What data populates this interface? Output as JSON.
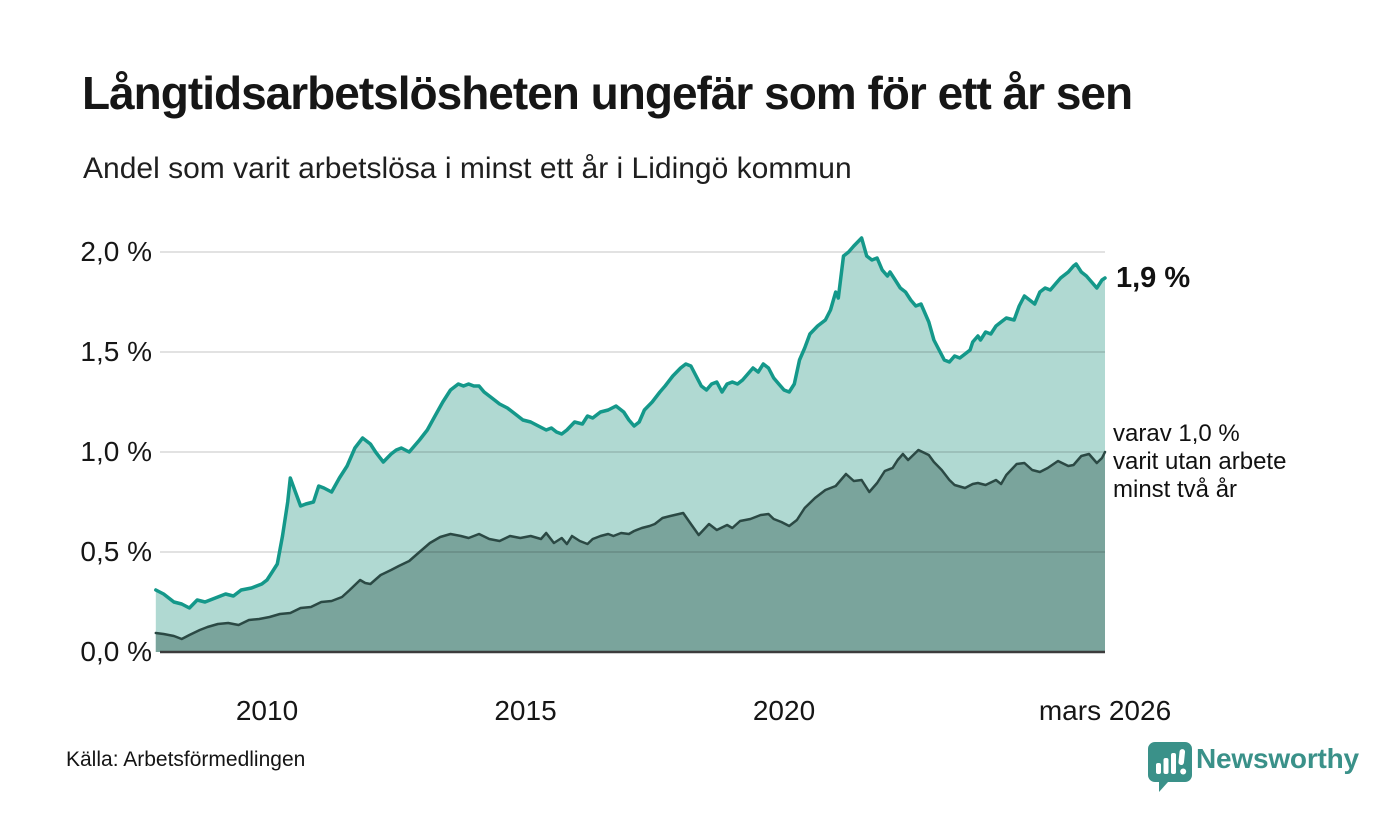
{
  "header": {
    "title": "Långtidsarbetslösheten ungefär som för ett år sen",
    "subtitle": "Andel som varit arbetslösa i minst ett år i Lidingö kommun"
  },
  "annotations": {
    "end_value_total": "1,9 %",
    "end_note_lines": [
      "varav 1,0 %",
      "varit utan arbete",
      "minst två år"
    ]
  },
  "source": "Källa: Arbetsförmedlingen",
  "branding": {
    "name": "Newsworthy",
    "logo_icon": "bar-chart-speech-bubble-icon"
  },
  "colors": {
    "background": "#ffffff",
    "title_text": "#161616",
    "line_total": "#14988a",
    "fill_total": "#b0d9d2",
    "line_two_years": "#2b4944",
    "fill_two_years": "#7aa49c",
    "gridline": "#e1e1e1",
    "axis_line": "#3c3c3c",
    "brand_teal": "#3a9189"
  },
  "chart_data": {
    "type": "area",
    "title": "Långtidsarbetslösheten ungefär som för ett år sen",
    "subtitle": "Andel som varit arbetslösa i minst ett år i Lidingö kommun",
    "xlabel": "",
    "ylabel": "",
    "x_range": [
      2007.85,
      2026.25
    ],
    "ylim": [
      0,
      2.1
    ],
    "grid": true,
    "y_ticks": [
      {
        "label": "0,0 %",
        "value": 0.0
      },
      {
        "label": "0,5 %",
        "value": 0.5
      },
      {
        "label": "1,0 %",
        "value": 1.0
      },
      {
        "label": "1,5 %",
        "value": 1.5
      },
      {
        "label": "2,0 %",
        "value": 2.0
      }
    ],
    "x_ticks": [
      {
        "label": "2010",
        "year": 2010
      },
      {
        "label": "2015",
        "year": 2015
      },
      {
        "label": "2020",
        "year": 2020
      },
      {
        "label": "mars 2026",
        "year": 2026.25
      }
    ],
    "series": [
      {
        "name": "Arbetslösa minst ett år",
        "end_label": "1,9 %",
        "line_color": "#14988a",
        "fill_color": "#b0d9d2",
        "line_width": 3.5,
        "points": [
          [
            2007.85,
            0.31
          ],
          [
            2008.0,
            0.29
          ],
          [
            2008.2,
            0.25
          ],
          [
            2008.35,
            0.24
          ],
          [
            2008.5,
            0.22
          ],
          [
            2008.65,
            0.26
          ],
          [
            2008.8,
            0.25
          ],
          [
            2009.0,
            0.27
          ],
          [
            2009.2,
            0.29
          ],
          [
            2009.35,
            0.28
          ],
          [
            2009.5,
            0.31
          ],
          [
            2009.7,
            0.32
          ],
          [
            2009.9,
            0.34
          ],
          [
            2010.0,
            0.36
          ],
          [
            2010.1,
            0.4
          ],
          [
            2010.2,
            0.44
          ],
          [
            2010.3,
            0.58
          ],
          [
            2010.4,
            0.75
          ],
          [
            2010.45,
            0.87
          ],
          [
            2010.55,
            0.8
          ],
          [
            2010.65,
            0.73
          ],
          [
            2010.75,
            0.74
          ],
          [
            2010.9,
            0.75
          ],
          [
            2011.0,
            0.83
          ],
          [
            2011.1,
            0.82
          ],
          [
            2011.25,
            0.8
          ],
          [
            2011.4,
            0.87
          ],
          [
            2011.55,
            0.93
          ],
          [
            2011.7,
            1.02
          ],
          [
            2011.85,
            1.07
          ],
          [
            2012.0,
            1.04
          ],
          [
            2012.1,
            1.0
          ],
          [
            2012.25,
            0.95
          ],
          [
            2012.4,
            0.99
          ],
          [
            2012.5,
            1.01
          ],
          [
            2012.6,
            1.02
          ],
          [
            2012.75,
            1.0
          ],
          [
            2012.95,
            1.06
          ],
          [
            2013.1,
            1.11
          ],
          [
            2013.25,
            1.18
          ],
          [
            2013.4,
            1.25
          ],
          [
            2013.55,
            1.31
          ],
          [
            2013.7,
            1.34
          ],
          [
            2013.8,
            1.33
          ],
          [
            2013.9,
            1.34
          ],
          [
            2014.0,
            1.33
          ],
          [
            2014.1,
            1.33
          ],
          [
            2014.2,
            1.3
          ],
          [
            2014.35,
            1.27
          ],
          [
            2014.5,
            1.24
          ],
          [
            2014.65,
            1.22
          ],
          [
            2014.8,
            1.19
          ],
          [
            2014.95,
            1.16
          ],
          [
            2015.1,
            1.15
          ],
          [
            2015.25,
            1.13
          ],
          [
            2015.4,
            1.11
          ],
          [
            2015.5,
            1.12
          ],
          [
            2015.6,
            1.1
          ],
          [
            2015.7,
            1.09
          ],
          [
            2015.8,
            1.11
          ],
          [
            2015.95,
            1.15
          ],
          [
            2016.1,
            1.14
          ],
          [
            2016.2,
            1.18
          ],
          [
            2016.3,
            1.17
          ],
          [
            2016.45,
            1.2
          ],
          [
            2016.6,
            1.21
          ],
          [
            2016.75,
            1.23
          ],
          [
            2016.9,
            1.2
          ],
          [
            2017.0,
            1.16
          ],
          [
            2017.1,
            1.13
          ],
          [
            2017.2,
            1.15
          ],
          [
            2017.3,
            1.21
          ],
          [
            2017.45,
            1.25
          ],
          [
            2017.6,
            1.3
          ],
          [
            2017.7,
            1.33
          ],
          [
            2017.85,
            1.38
          ],
          [
            2018.0,
            1.42
          ],
          [
            2018.1,
            1.44
          ],
          [
            2018.2,
            1.43
          ],
          [
            2018.3,
            1.38
          ],
          [
            2018.4,
            1.33
          ],
          [
            2018.5,
            1.31
          ],
          [
            2018.6,
            1.34
          ],
          [
            2018.7,
            1.35
          ],
          [
            2018.8,
            1.3
          ],
          [
            2018.9,
            1.34
          ],
          [
            2019.0,
            1.35
          ],
          [
            2019.1,
            1.34
          ],
          [
            2019.2,
            1.36
          ],
          [
            2019.3,
            1.39
          ],
          [
            2019.4,
            1.42
          ],
          [
            2019.5,
            1.4
          ],
          [
            2019.6,
            1.44
          ],
          [
            2019.7,
            1.42
          ],
          [
            2019.8,
            1.37
          ],
          [
            2019.9,
            1.34
          ],
          [
            2020.0,
            1.31
          ],
          [
            2020.1,
            1.3
          ],
          [
            2020.2,
            1.34
          ],
          [
            2020.3,
            1.46
          ],
          [
            2020.4,
            1.52
          ],
          [
            2020.5,
            1.59
          ],
          [
            2020.65,
            1.63
          ],
          [
            2020.8,
            1.66
          ],
          [
            2020.9,
            1.71
          ],
          [
            2021.0,
            1.8
          ],
          [
            2021.05,
            1.77
          ],
          [
            2021.15,
            1.98
          ],
          [
            2021.25,
            2.0
          ],
          [
            2021.35,
            2.03
          ],
          [
            2021.5,
            2.07
          ],
          [
            2021.6,
            1.98
          ],
          [
            2021.7,
            1.96
          ],
          [
            2021.8,
            1.97
          ],
          [
            2021.9,
            1.91
          ],
          [
            2022.0,
            1.88
          ],
          [
            2022.05,
            1.9
          ],
          [
            2022.15,
            1.86
          ],
          [
            2022.25,
            1.82
          ],
          [
            2022.35,
            1.8
          ],
          [
            2022.45,
            1.76
          ],
          [
            2022.55,
            1.73
          ],
          [
            2022.65,
            1.74
          ],
          [
            2022.7,
            1.71
          ],
          [
            2022.8,
            1.65
          ],
          [
            2022.9,
            1.56
          ],
          [
            2023.0,
            1.51
          ],
          [
            2023.1,
            1.46
          ],
          [
            2023.2,
            1.45
          ],
          [
            2023.3,
            1.48
          ],
          [
            2023.4,
            1.47
          ],
          [
            2023.5,
            1.49
          ],
          [
            2023.6,
            1.51
          ],
          [
            2023.65,
            1.55
          ],
          [
            2023.75,
            1.58
          ],
          [
            2023.8,
            1.56
          ],
          [
            2023.9,
            1.6
          ],
          [
            2024.0,
            1.59
          ],
          [
            2024.1,
            1.63
          ],
          [
            2024.2,
            1.65
          ],
          [
            2024.3,
            1.67
          ],
          [
            2024.45,
            1.66
          ],
          [
            2024.55,
            1.73
          ],
          [
            2024.65,
            1.78
          ],
          [
            2024.75,
            1.76
          ],
          [
            2024.85,
            1.74
          ],
          [
            2024.95,
            1.8
          ],
          [
            2025.05,
            1.82
          ],
          [
            2025.15,
            1.81
          ],
          [
            2025.25,
            1.84
          ],
          [
            2025.35,
            1.87
          ],
          [
            2025.5,
            1.9
          ],
          [
            2025.6,
            1.93
          ],
          [
            2025.65,
            1.94
          ],
          [
            2025.75,
            1.9
          ],
          [
            2025.85,
            1.88
          ],
          [
            2025.95,
            1.85
          ],
          [
            2026.05,
            1.82
          ],
          [
            2026.15,
            1.86
          ],
          [
            2026.25,
            1.87
          ]
        ]
      },
      {
        "name": "varav utan arbete minst två år",
        "end_label": "varav 1,0 % varit utan arbete minst två år",
        "line_color": "#2b4944",
        "fill_color": "#7aa49c",
        "line_width": 2.5,
        "points": [
          [
            2007.85,
            0.095
          ],
          [
            2008.0,
            0.09
          ],
          [
            2008.2,
            0.08
          ],
          [
            2008.35,
            0.065
          ],
          [
            2008.5,
            0.085
          ],
          [
            2008.7,
            0.11
          ],
          [
            2008.85,
            0.125
          ],
          [
            2009.05,
            0.14
          ],
          [
            2009.25,
            0.145
          ],
          [
            2009.45,
            0.135
          ],
          [
            2009.65,
            0.16
          ],
          [
            2009.85,
            0.165
          ],
          [
            2010.05,
            0.175
          ],
          [
            2010.25,
            0.19
          ],
          [
            2010.45,
            0.195
          ],
          [
            2010.65,
            0.22
          ],
          [
            2010.85,
            0.225
          ],
          [
            2011.05,
            0.25
          ],
          [
            2011.25,
            0.255
          ],
          [
            2011.45,
            0.275
          ],
          [
            2011.6,
            0.31
          ],
          [
            2011.8,
            0.36
          ],
          [
            2011.9,
            0.345
          ],
          [
            2012.0,
            0.34
          ],
          [
            2012.2,
            0.385
          ],
          [
            2012.4,
            0.41
          ],
          [
            2012.55,
            0.43
          ],
          [
            2012.75,
            0.455
          ],
          [
            2012.95,
            0.5
          ],
          [
            2013.15,
            0.545
          ],
          [
            2013.35,
            0.575
          ],
          [
            2013.55,
            0.59
          ],
          [
            2013.75,
            0.58
          ],
          [
            2013.9,
            0.57
          ],
          [
            2014.1,
            0.59
          ],
          [
            2014.3,
            0.565
          ],
          [
            2014.5,
            0.555
          ],
          [
            2014.7,
            0.58
          ],
          [
            2014.9,
            0.57
          ],
          [
            2015.1,
            0.58
          ],
          [
            2015.3,
            0.565
          ],
          [
            2015.4,
            0.595
          ],
          [
            2015.55,
            0.545
          ],
          [
            2015.7,
            0.57
          ],
          [
            2015.8,
            0.54
          ],
          [
            2015.9,
            0.58
          ],
          [
            2016.05,
            0.555
          ],
          [
            2016.2,
            0.54
          ],
          [
            2016.3,
            0.565
          ],
          [
            2016.45,
            0.58
          ],
          [
            2016.6,
            0.59
          ],
          [
            2016.7,
            0.58
          ],
          [
            2016.85,
            0.595
          ],
          [
            2017.0,
            0.59
          ],
          [
            2017.1,
            0.605
          ],
          [
            2017.25,
            0.62
          ],
          [
            2017.4,
            0.63
          ],
          [
            2017.5,
            0.64
          ],
          [
            2017.65,
            0.67
          ],
          [
            2017.8,
            0.68
          ],
          [
            2018.05,
            0.695
          ],
          [
            2018.2,
            0.64
          ],
          [
            2018.35,
            0.585
          ],
          [
            2018.55,
            0.64
          ],
          [
            2018.7,
            0.61
          ],
          [
            2018.9,
            0.635
          ],
          [
            2019.0,
            0.62
          ],
          [
            2019.15,
            0.655
          ],
          [
            2019.35,
            0.665
          ],
          [
            2019.55,
            0.685
          ],
          [
            2019.7,
            0.69
          ],
          [
            2019.8,
            0.665
          ],
          [
            2019.95,
            0.65
          ],
          [
            2020.1,
            0.63
          ],
          [
            2020.25,
            0.66
          ],
          [
            2020.4,
            0.72
          ],
          [
            2020.6,
            0.77
          ],
          [
            2020.8,
            0.81
          ],
          [
            2021.0,
            0.83
          ],
          [
            2021.2,
            0.89
          ],
          [
            2021.35,
            0.855
          ],
          [
            2021.5,
            0.86
          ],
          [
            2021.65,
            0.8
          ],
          [
            2021.8,
            0.845
          ],
          [
            2021.95,
            0.905
          ],
          [
            2022.1,
            0.92
          ],
          [
            2022.2,
            0.96
          ],
          [
            2022.3,
            0.99
          ],
          [
            2022.4,
            0.96
          ],
          [
            2022.6,
            1.01
          ],
          [
            2022.8,
            0.985
          ],
          [
            2022.9,
            0.95
          ],
          [
            2023.05,
            0.91
          ],
          [
            2023.2,
            0.86
          ],
          [
            2023.3,
            0.835
          ],
          [
            2023.5,
            0.82
          ],
          [
            2023.65,
            0.84
          ],
          [
            2023.75,
            0.845
          ],
          [
            2023.9,
            0.835
          ],
          [
            2024.1,
            0.86
          ],
          [
            2024.2,
            0.84
          ],
          [
            2024.3,
            0.885
          ],
          [
            2024.5,
            0.94
          ],
          [
            2024.65,
            0.945
          ],
          [
            2024.8,
            0.91
          ],
          [
            2024.95,
            0.9
          ],
          [
            2025.1,
            0.92
          ],
          [
            2025.3,
            0.955
          ],
          [
            2025.5,
            0.93
          ],
          [
            2025.6,
            0.935
          ],
          [
            2025.75,
            0.98
          ],
          [
            2025.9,
            0.99
          ],
          [
            2026.05,
            0.945
          ],
          [
            2026.15,
            0.97
          ],
          [
            2026.25,
            1.0
          ]
        ]
      }
    ]
  }
}
